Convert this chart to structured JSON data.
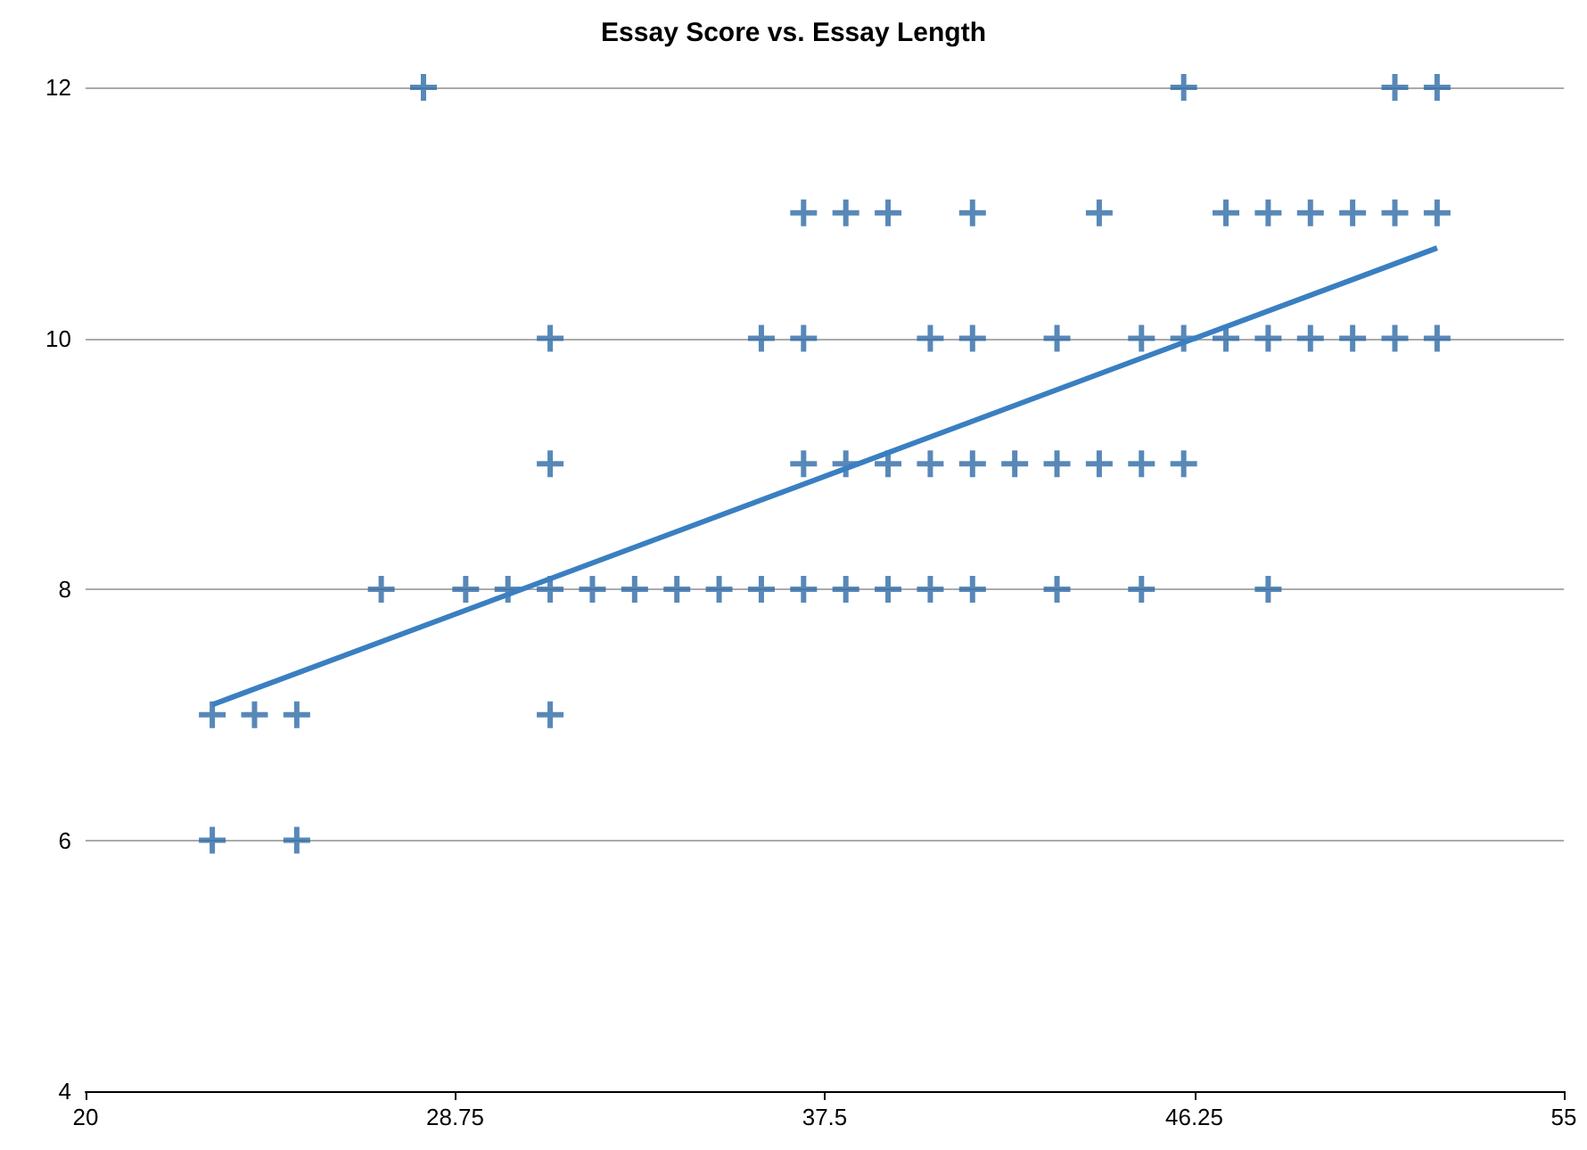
{
  "chart_data": {
    "type": "scatter",
    "title": "Essay Score vs. Essay Length",
    "xlim": [
      20,
      55
    ],
    "xticks": [
      20,
      28.75,
      37.5,
      46.25,
      55
    ],
    "ylim": [
      4,
      12
    ],
    "yticks": [
      4,
      6,
      8,
      10,
      12
    ],
    "grid": "y",
    "series": [
      {
        "marker": "cross",
        "color": "#2e6aa6",
        "x": [
          28,
          46,
          51,
          52,
          37,
          38,
          39,
          41,
          44,
          47,
          48,
          49,
          50,
          51,
          52,
          31,
          36,
          37,
          40,
          41,
          43,
          45,
          46,
          47,
          48,
          49,
          50,
          51,
          52,
          31,
          37,
          38,
          39,
          40,
          41,
          42,
          43,
          44,
          45,
          46,
          27,
          29,
          30,
          31,
          32,
          33,
          34,
          35,
          36,
          37,
          38,
          39,
          40,
          41,
          43,
          45,
          48,
          23,
          24,
          25,
          31,
          23,
          25
        ],
        "values": [
          12,
          12,
          12,
          12,
          11,
          11,
          11,
          11,
          11,
          11,
          11,
          11,
          11,
          11,
          11,
          10,
          10,
          10,
          10,
          10,
          10,
          10,
          10,
          10,
          10,
          10,
          10,
          10,
          10,
          9,
          9,
          9,
          9,
          9,
          9,
          9,
          9,
          9,
          9,
          9,
          8,
          8,
          8,
          8,
          8,
          8,
          8,
          8,
          8,
          8,
          8,
          8,
          8,
          8,
          8,
          8,
          8,
          7,
          7,
          7,
          7,
          6,
          6
        ]
      },
      {
        "type": "line",
        "color": "#3a7fc1",
        "x": [
          23,
          52
        ],
        "values": [
          7.08,
          10.72
        ]
      }
    ]
  }
}
